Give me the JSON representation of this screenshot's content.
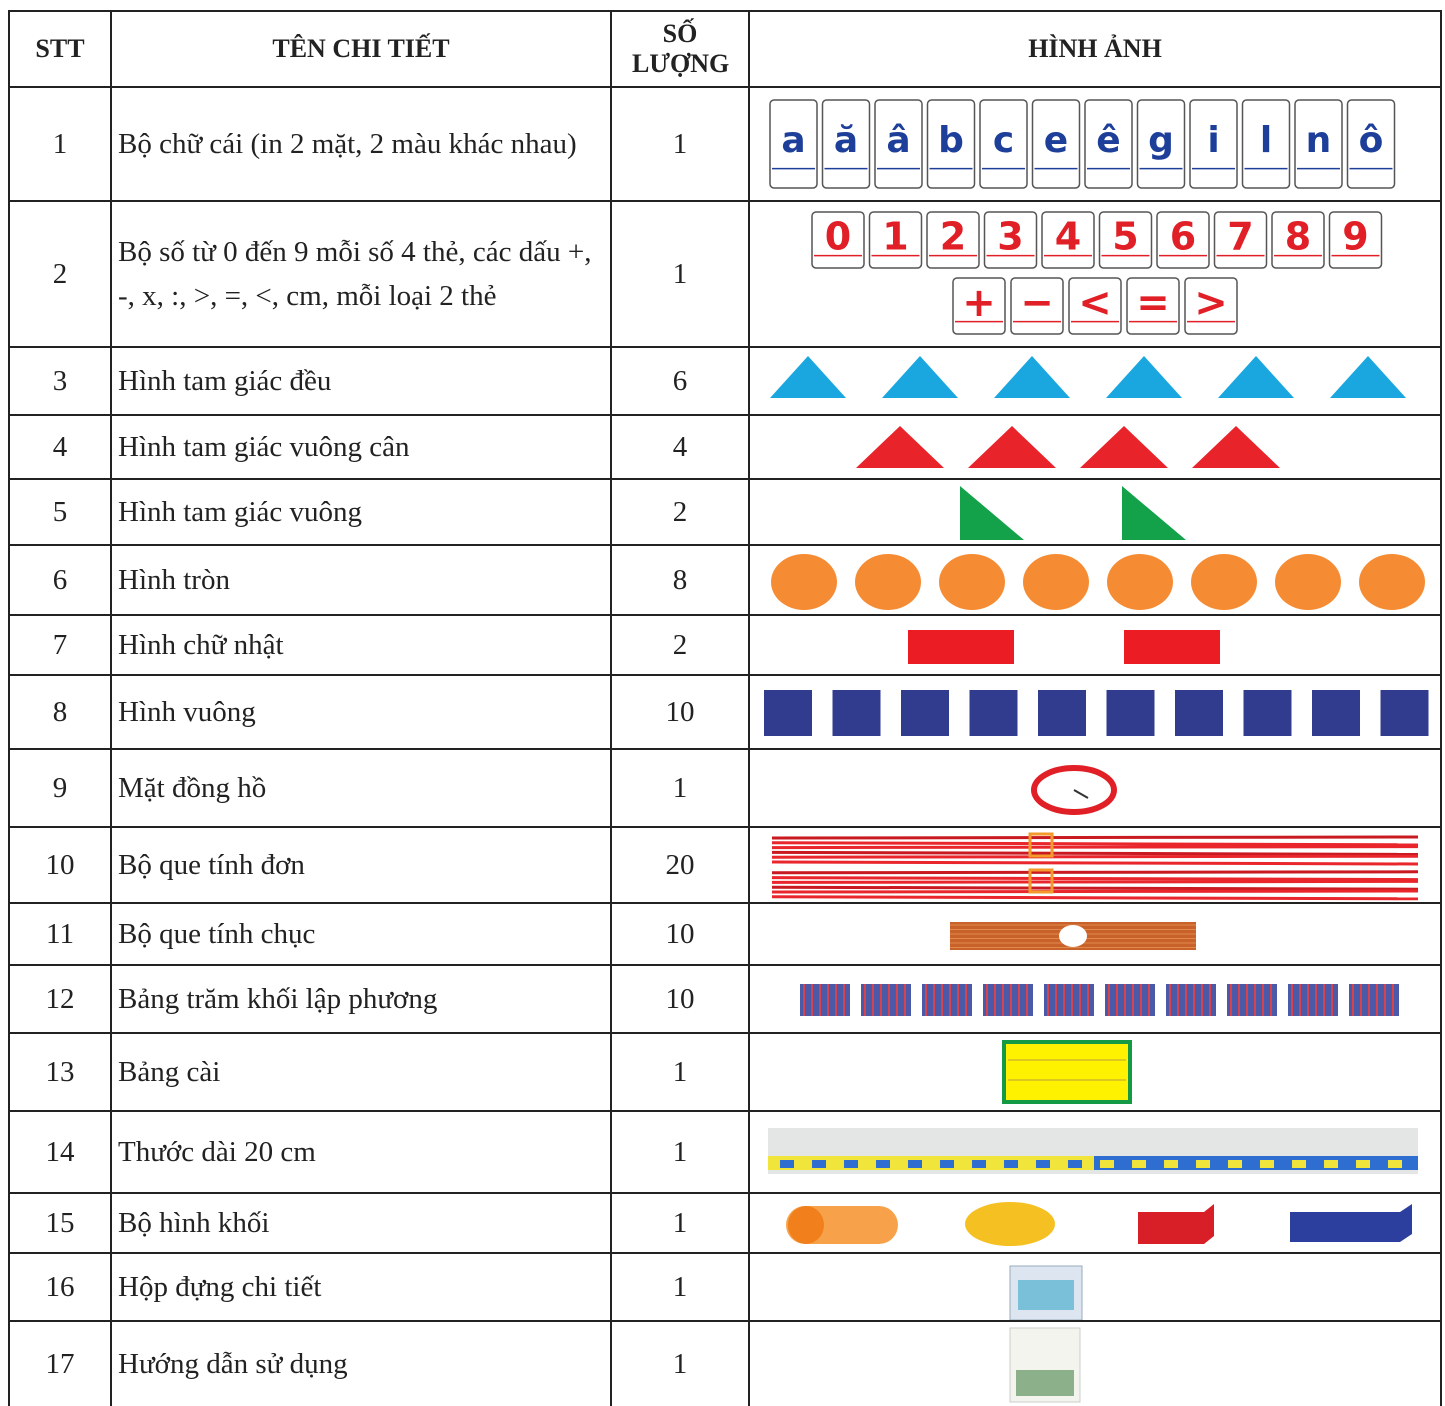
{
  "table": {
    "header": [
      "STT",
      "TÊN CHI TIẾT",
      "SỐ LƯỢNG",
      "HÌNH ẢNH"
    ],
    "rows": [
      [
        1,
        "Bộ chữ cái (in 2 mặt, 2 màu khác nhau)",
        1
      ],
      [
        2,
        "Bộ số từ 0 đến 9 mỗi số 4 thẻ, các dấu +, -, x, :, >, =, <, cm, mỗi loại 2 thẻ",
        1
      ],
      [
        3,
        "Hình tam giác đều",
        6
      ],
      [
        4,
        "Hình tam giác vuông cân",
        4
      ],
      [
        5,
        "Hình tam giác vuông",
        2
      ],
      [
        6,
        "Hình tròn",
        8
      ],
      [
        7,
        "Hình chữ nhật",
        2
      ],
      [
        8,
        "Hình vuông",
        10
      ],
      [
        9,
        "Mặt đồng hồ",
        1
      ],
      [
        10,
        "Bộ que tính đơn",
        20
      ],
      [
        11,
        "Bộ que tính chục",
        10
      ],
      [
        12,
        "Bảng trăm khối lập phương",
        10
      ],
      [
        13,
        "Bảng cài",
        1
      ],
      [
        14,
        "Thước dài 20 cm",
        1
      ],
      [
        15,
        "Bộ hình khối",
        1
      ],
      [
        16,
        "Hộp đựng chi tiết",
        1
      ],
      [
        17,
        "Hướng dẫn sử dụng",
        1
      ]
    ]
  },
  "cards": {
    "letters": [
      "a",
      "ă",
      "â",
      "b",
      "c",
      "e",
      "ê",
      "g",
      "i",
      "l",
      "n",
      "ô"
    ],
    "digits": [
      "0",
      "1",
      "2",
      "3",
      "4",
      "5",
      "6",
      "7",
      "8",
      "9"
    ],
    "signs": [
      "+",
      "−",
      "<",
      "=",
      ">"
    ]
  }
}
